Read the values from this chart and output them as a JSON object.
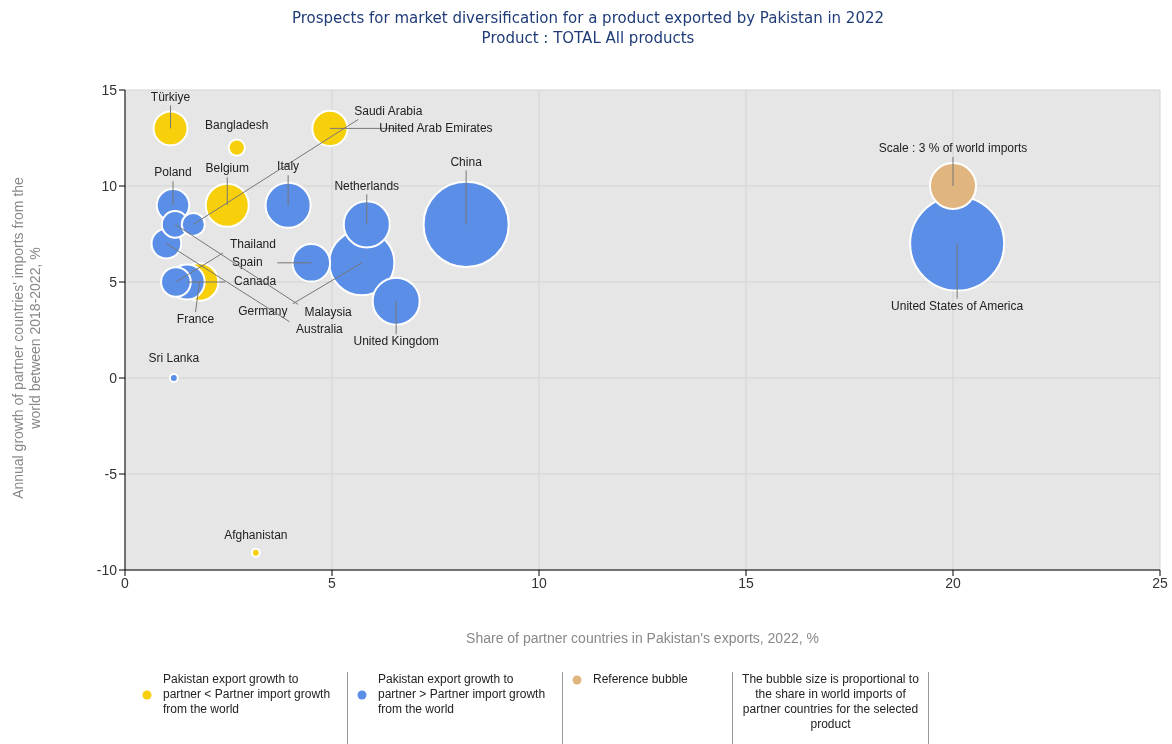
{
  "chart_data": {
    "type": "bubble",
    "title": "Prospects for market diversification for a product exported by Pakistan in 2022",
    "subtitle": "Product : TOTAL All products",
    "xlabel": "Share of partner countries in Pakistan's exports, 2022, %",
    "ylabel": "Annual growth of partner countries' imports from the world between 2018-2022, %",
    "xlim": [
      0,
      25
    ],
    "xticks": [
      0,
      5,
      10,
      15,
      20,
      25
    ],
    "ylim": [
      -10,
      15
    ],
    "yticks": [
      -10,
      -5,
      0,
      5,
      10,
      15
    ],
    "grid": true,
    "legend": "bottom",
    "series": [
      {
        "name": "Pakistan export growth to partner < Partner import growth from the world",
        "color": "#f7cf0a",
        "x": [
          1.1,
          2.7,
          4.95,
          2.47,
          1.8,
          3.16
        ],
        "values": [
          13,
          12,
          13,
          9,
          5,
          -9.1
        ],
        "sizes": [
          0.13,
          0.03,
          0.14,
          0.21,
          0.16,
          0.007
        ]
      },
      {
        "name": "Pakistan export growth to partner > Partner import growth from the world",
        "color": "#5b8ee6",
        "x": [
          8.24,
          20.1,
          5.72,
          6.55,
          5.84,
          3.94,
          4.5,
          1.5,
          1.16,
          1.0,
          1.21,
          1.65,
          1.23,
          1.18
        ],
        "values": [
          8,
          7,
          6,
          4,
          8,
          9,
          6,
          5,
          9,
          7,
          8,
          8,
          5,
          0
        ],
        "sizes": [
          0.82,
          1,
          0.48,
          0.25,
          0.24,
          0.23,
          0.16,
          0.14,
          0.12,
          0.1,
          0.08,
          0.06,
          0.1,
          0.007
        ]
      },
      {
        "name": "Reference bubble",
        "color": "#e1b57f",
        "x": [
          20
        ],
        "values": [
          10
        ],
        "sizes": [
          0.24
        ]
      }
    ],
    "annotations": [
      {
        "text": "Türkiye",
        "x": 1.1,
        "y": 13
      },
      {
        "text": "Bangladesh",
        "x": 2.7,
        "y": 12
      },
      {
        "text": "Saudi Arabia",
        "x": 1.65,
        "y": 8
      },
      {
        "text": "United Arab Emirates",
        "x": 4.95,
        "y": 13
      },
      {
        "text": "Poland",
        "x": 1.16,
        "y": 9
      },
      {
        "text": "Belgium",
        "x": 2.47,
        "y": 9
      },
      {
        "text": "Italy",
        "x": 3.94,
        "y": 9
      },
      {
        "text": "Netherlands",
        "x": 5.84,
        "y": 8
      },
      {
        "text": "China",
        "x": 8.24,
        "y": 8
      },
      {
        "text": "Thailand",
        "x": 1.23,
        "y": 5
      },
      {
        "text": "Spain",
        "x": 4.5,
        "y": 6
      },
      {
        "text": "Canada",
        "x": 1.5,
        "y": 5
      },
      {
        "text": "France",
        "x": 1.8,
        "y": 5
      },
      {
        "text": "Germany",
        "x": 5.72,
        "y": 6
      },
      {
        "text": "Malaysia",
        "x": 1.21,
        "y": 8
      },
      {
        "text": "Australia",
        "x": 1.0,
        "y": 7
      },
      {
        "text": "United Kingdom",
        "x": 6.55,
        "y": 4
      },
      {
        "text": "Sri Lanka",
        "x": 1.18,
        "y": 0
      },
      {
        "text": "Afghanistan",
        "x": 3.16,
        "y": -9.1
      },
      {
        "text": "United States of America",
        "x": 20.1,
        "y": 7
      },
      {
        "text": "Scale : 3 % of world imports",
        "x": 20,
        "y": 10
      },
      "The bubble size is proportional to the share in world imports of partner countries for the selected product"
    ]
  }
}
